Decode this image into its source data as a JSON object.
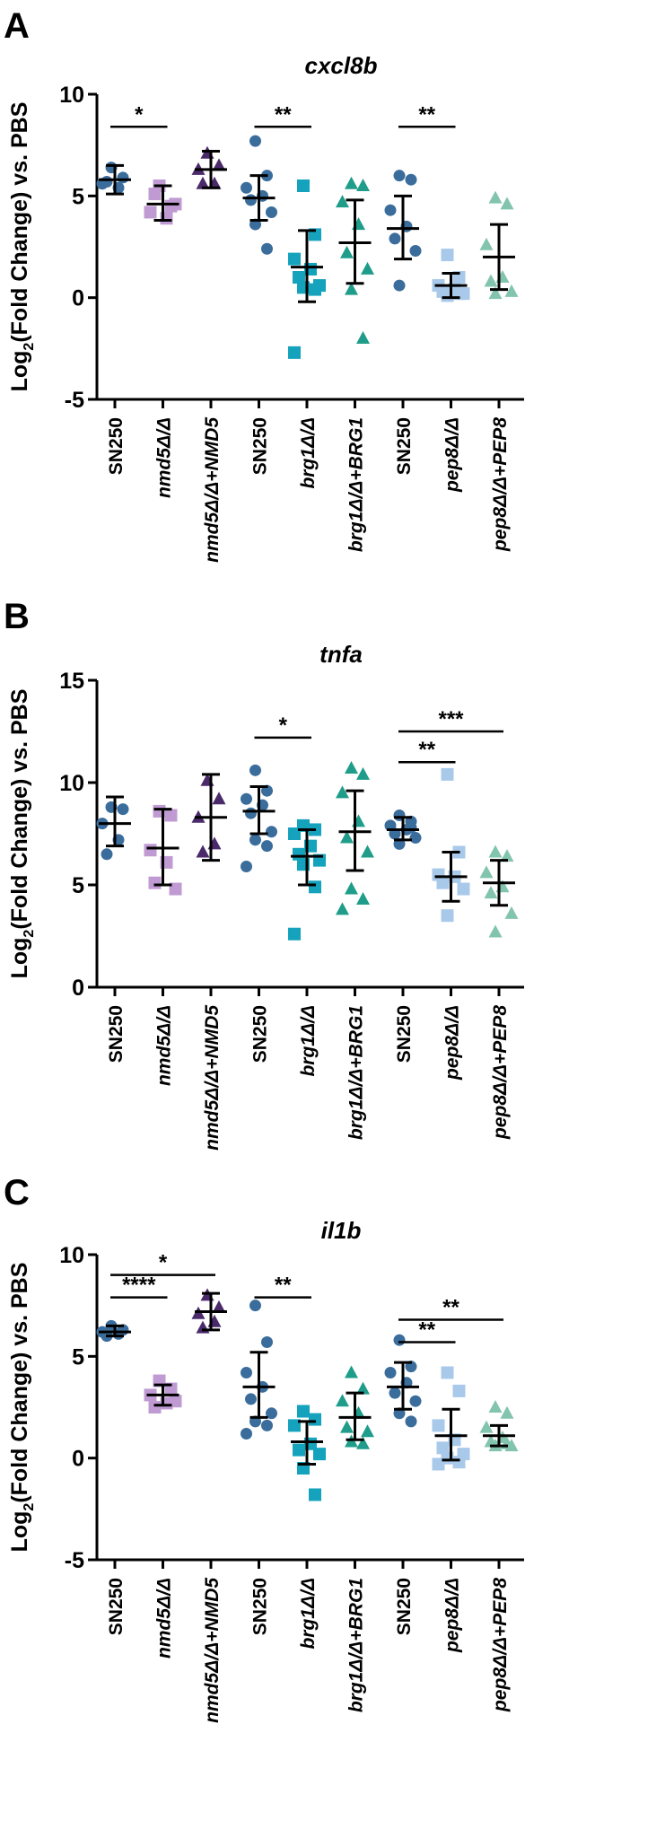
{
  "colors": {
    "wt": "#3a6d9c",
    "nmd5": "#c09bd3",
    "nmd5_comp": "#4a2a6a",
    "brg1": "#14a2bd",
    "brg1_comp": "#1f9d8a",
    "pep8": "#a9c9ea",
    "pep8_comp": "#82c4ae",
    "axis": "#000000"
  },
  "categories": [
    "SN250",
    "nmd5Δ/Δ",
    "nmd5Δ/Δ+NMD5",
    "SN250",
    "brg1Δ/Δ",
    "brg1Δ/Δ+BRG1",
    "SN250",
    "pep8Δ/Δ",
    "pep8Δ/Δ+PEP8"
  ],
  "marker_shapes": [
    "circle",
    "square",
    "triangle",
    "circle",
    "square",
    "triangle",
    "circle",
    "square",
    "triangle"
  ],
  "marker_colors": [
    "wt",
    "nmd5",
    "nmd5_comp",
    "wt",
    "brg1",
    "brg1_comp",
    "wt",
    "pep8",
    "pep8_comp"
  ],
  "chart_data": [
    {
      "panel": "A",
      "type": "scatter",
      "title": "cxcl8b",
      "ylabel": "Log2(Fold Change) vs. PBS",
      "ylabel_main": "Log",
      "ylabel_sub": "2",
      "ylabel_rest": "(Fold Change) vs. PBS",
      "ylim": [
        -5,
        10
      ],
      "yticks": [
        -5,
        0,
        5,
        10
      ],
      "series": [
        {
          "category": "SN250",
          "points": [
            6.4,
            5.9,
            5.6,
            5.4,
            5.7
          ],
          "mean": 5.8,
          "sd_low": 5.1,
          "sd_high": 6.5
        },
        {
          "category": "nmd5Δ/Δ",
          "points": [
            5.5,
            4.5,
            4.2,
            3.9,
            5.1,
            4.6
          ],
          "mean": 4.6,
          "sd_low": 3.8,
          "sd_high": 5.5
        },
        {
          "category": "nmd5Δ/Δ+NMD5",
          "points": [
            7.1,
            6.5,
            6.3,
            5.6,
            5.6
          ],
          "mean": 6.3,
          "sd_low": 5.4,
          "sd_high": 7.2
        },
        {
          "category": "SN250",
          "points": [
            7.7,
            6.0,
            5.4,
            5.0,
            4.8,
            4.2,
            3.6,
            2.4
          ],
          "mean": 4.9,
          "sd_low": 3.8,
          "sd_high": 6.0
        },
        {
          "category": "brg1Δ/Δ",
          "points": [
            5.5,
            3.1,
            1.9,
            1.4,
            1.0,
            0.6,
            0.5,
            0.4,
            -2.7
          ],
          "mean": 1.5,
          "sd_low": -0.2,
          "sd_high": 3.3
        },
        {
          "category": "brg1Δ/Δ+BRG1",
          "points": [
            5.6,
            5.5,
            4.7,
            3.6,
            2.2,
            1.4,
            0.4,
            -2.0
          ],
          "mean": 2.7,
          "sd_low": 0.7,
          "sd_high": 4.8
        },
        {
          "category": "SN250",
          "points": [
            6.0,
            5.8,
            4.3,
            3.5,
            2.9,
            2.3,
            0.6
          ],
          "mean": 3.4,
          "sd_low": 1.9,
          "sd_high": 5.0
        },
        {
          "category": "pep8Δ/Δ",
          "points": [
            2.1,
            1.0,
            0.6,
            0.4,
            0.3,
            0.2,
            0.1,
            0.2
          ],
          "mean": 0.6,
          "sd_low": 0.0,
          "sd_high": 1.2
        },
        {
          "category": "pep8Δ/Δ+PEP8",
          "points": [
            4.9,
            4.6,
            2.6,
            1.0,
            0.8,
            0.3,
            0.2
          ],
          "mean": 2.0,
          "sd_low": 0.4,
          "sd_high": 3.6
        }
      ],
      "significance": [
        {
          "from": 0,
          "to": 1,
          "label": "*",
          "y": 8.4
        },
        {
          "from": 3,
          "to": 4,
          "label": "**",
          "y": 8.4
        },
        {
          "from": 6,
          "to": 7,
          "label": "**",
          "y": 8.4
        }
      ]
    },
    {
      "panel": "B",
      "type": "scatter",
      "title": "tnfa",
      "ylabel": "Log2(Fold Change) vs. PBS",
      "ylabel_main": "Log",
      "ylabel_sub": "2",
      "ylabel_rest": "(Fold Change) vs. PBS",
      "ylim": [
        0,
        15
      ],
      "yticks": [
        0,
        5,
        10,
        15
      ],
      "series": [
        {
          "category": "SN250",
          "points": [
            8.8,
            8.7,
            8.0,
            7.2,
            6.5
          ],
          "mean": 8.0,
          "sd_low": 6.9,
          "sd_high": 9.3
        },
        {
          "category": "nmd5Δ/Δ",
          "points": [
            8.6,
            8.4,
            6.7,
            6.1,
            5.1,
            4.8
          ],
          "mean": 6.8,
          "sd_low": 5.0,
          "sd_high": 8.7
        },
        {
          "category": "nmd5Δ/Δ+NMD5",
          "points": [
            10.1,
            9.2,
            8.3,
            7.0,
            6.6
          ],
          "mean": 8.3,
          "sd_low": 6.2,
          "sd_high": 10.4
        },
        {
          "category": "SN250",
          "points": [
            10.6,
            9.6,
            9.2,
            8.9,
            8.5,
            7.6,
            7.2,
            6.9,
            5.9
          ],
          "mean": 8.6,
          "sd_low": 7.5,
          "sd_high": 9.8
        },
        {
          "category": "brg1Δ/Δ",
          "points": [
            7.9,
            7.7,
            7.5,
            6.9,
            6.5,
            6.2,
            6.0,
            4.9,
            2.6
          ],
          "mean": 6.4,
          "sd_low": 5.0,
          "sd_high": 7.7
        },
        {
          "category": "brg1Δ/Δ+BRG1",
          "points": [
            10.7,
            10.4,
            9.5,
            8.1,
            7.3,
            6.6,
            4.8,
            4.3,
            3.8
          ],
          "mean": 7.6,
          "sd_low": 5.7,
          "sd_high": 9.6
        },
        {
          "category": "SN250",
          "points": [
            8.4,
            8.1,
            7.9,
            7.7,
            7.5,
            7.3,
            7.0,
            7.8
          ],
          "mean": 7.7,
          "sd_low": 7.2,
          "sd_high": 8.3
        },
        {
          "category": "pep8Δ/Δ",
          "points": [
            10.4,
            6.6,
            5.5,
            5.4,
            5.1,
            4.8,
            3.5
          ],
          "mean": 5.4,
          "sd_low": 4.2,
          "sd_high": 6.6
        },
        {
          "category": "pep8Δ/Δ+PEP8",
          "points": [
            6.6,
            6.4,
            5.6,
            4.9,
            4.6,
            3.6,
            2.7
          ],
          "mean": 5.1,
          "sd_low": 4.0,
          "sd_high": 6.2
        }
      ],
      "significance": [
        {
          "from": 3,
          "to": 4,
          "label": "*",
          "y": 12.2
        },
        {
          "from": 6,
          "to": 8,
          "label": "***",
          "y": 12.5
        },
        {
          "from": 6,
          "to": 7,
          "label": "**",
          "y": 11.0
        }
      ]
    },
    {
      "panel": "C",
      "type": "scatter",
      "title": "il1b",
      "ylabel": "Log2(Fold Change) vs. PBS",
      "ylabel_main": "Log",
      "ylabel_sub": "2",
      "ylabel_rest": "(Fold Change) vs. PBS",
      "ylim": [
        -5,
        10
      ],
      "yticks": [
        -5,
        0,
        5,
        10
      ],
      "series": [
        {
          "category": "SN250",
          "points": [
            6.5,
            6.3,
            6.2,
            6.1,
            6.0
          ],
          "mean": 6.2,
          "sd_low": 6.0,
          "sd_high": 6.5
        },
        {
          "category": "nmd5Δ/Δ",
          "points": [
            3.8,
            3.4,
            3.1,
            2.7,
            2.5,
            2.8
          ],
          "mean": 3.1,
          "sd_low": 2.6,
          "sd_high": 3.6
        },
        {
          "category": "nmd5Δ/Δ+NMD5",
          "points": [
            8.0,
            7.4,
            7.1,
            6.7,
            6.4
          ],
          "mean": 7.2,
          "sd_low": 6.3,
          "sd_high": 8.1
        },
        {
          "category": "SN250",
          "points": [
            7.5,
            5.7,
            4.2,
            3.5,
            2.9,
            2.2,
            1.8,
            1.6,
            1.2
          ],
          "mean": 3.5,
          "sd_low": 2.0,
          "sd_high": 5.2
        },
        {
          "category": "brg1Δ/Δ",
          "points": [
            2.3,
            1.9,
            1.6,
            0.7,
            0.4,
            0.2,
            -0.5,
            -1.8
          ],
          "mean": 0.8,
          "sd_low": -0.3,
          "sd_high": 1.8
        },
        {
          "category": "brg1Δ/Δ+BRG1",
          "points": [
            4.2,
            3.4,
            2.8,
            2.2,
            1.5,
            1.3,
            0.8,
            0.7
          ],
          "mean": 2.0,
          "sd_low": 0.9,
          "sd_high": 3.2
        },
        {
          "category": "SN250",
          "points": [
            5.8,
            4.5,
            4.2,
            3.7,
            3.2,
            2.8,
            2.2,
            1.8
          ],
          "mean": 3.5,
          "sd_low": 2.4,
          "sd_high": 4.7
        },
        {
          "category": "pep8Δ/Δ",
          "points": [
            4.2,
            3.3,
            1.6,
            0.9,
            0.5,
            0.2,
            0.0,
            -0.2,
            -0.3
          ],
          "mean": 1.1,
          "sd_low": -0.1,
          "sd_high": 2.4
        },
        {
          "category": "pep8Δ/Δ+PEP8",
          "points": [
            2.5,
            2.2,
            1.5,
            1.0,
            0.8,
            0.6,
            0.6,
            0.7
          ],
          "mean": 1.1,
          "sd_low": 0.6,
          "sd_high": 1.6
        }
      ],
      "significance": [
        {
          "from": 0,
          "to": 2,
          "label": "*",
          "y": 9.0
        },
        {
          "from": 0,
          "to": 1,
          "label": "****",
          "y": 7.9
        },
        {
          "from": 3,
          "to": 4,
          "label": "**",
          "y": 7.9
        },
        {
          "from": 6,
          "to": 8,
          "label": "**",
          "y": 6.8
        },
        {
          "from": 6,
          "to": 7,
          "label": "**",
          "y": 5.7
        }
      ]
    }
  ]
}
